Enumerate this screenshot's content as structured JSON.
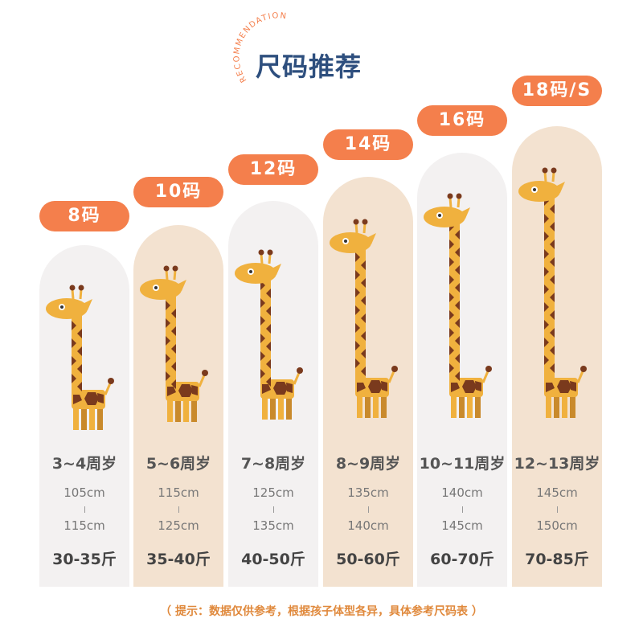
{
  "header": {
    "subtitle": "RECOMMENDATION",
    "title": "尺码推荐"
  },
  "colors": {
    "accent": "#f47f4c",
    "title": "#2e4f7e",
    "column_light": "#f3f1f1",
    "column_beige": "#f3e2d0",
    "giraffe_body": "#f0b13e",
    "giraffe_spot": "#7a3a1d",
    "note": "#e0893c"
  },
  "sizes": [
    {
      "badge": "8码",
      "age": "3~4周岁",
      "height_min": "105cm",
      "height_max": "115cm",
      "weight": "30-35斤"
    },
    {
      "badge": "10码",
      "age": "5~6周岁",
      "height_min": "115cm",
      "height_max": "125cm",
      "weight": "35-40斤"
    },
    {
      "badge": "12码",
      "age": "7~8周岁",
      "height_min": "125cm",
      "height_max": "135cm",
      "weight": "40-50斤"
    },
    {
      "badge": "14码",
      "age": "8~9周岁",
      "height_min": "135cm",
      "height_max": "140cm",
      "weight": "50-60斤"
    },
    {
      "badge": "16码",
      "age": "10~11周岁",
      "height_min": "140cm",
      "height_max": "145cm",
      "weight": "60-70斤"
    },
    {
      "badge": "18码/S",
      "age": "12~13周岁",
      "height_min": "145cm",
      "height_max": "150cm",
      "weight": "70-85斤"
    }
  ],
  "footer": {
    "note": "（ 提示：数据仅供参考，根据孩子体型各异，具体参考尺码表 ）"
  }
}
